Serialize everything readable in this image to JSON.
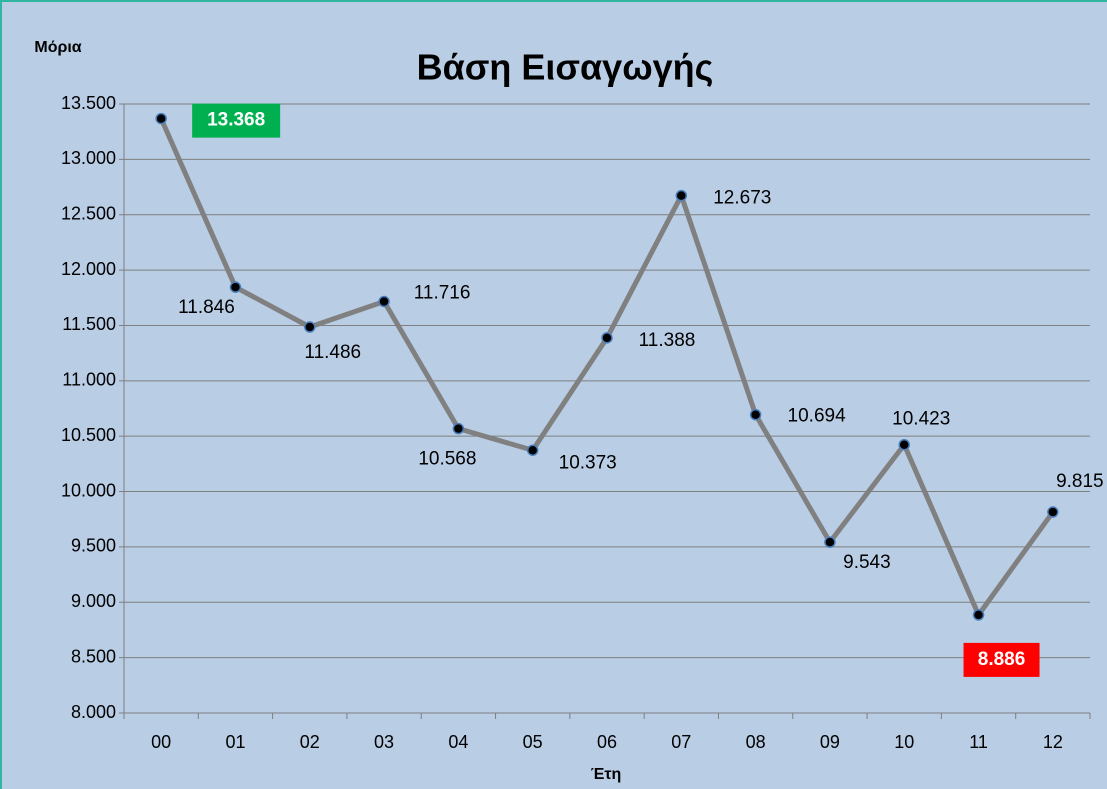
{
  "chart_data": {
    "type": "line",
    "title": "Βάση Εισαγωγής",
    "y_label": "Μόρια",
    "x_label": "Έτη",
    "categories": [
      "00",
      "01",
      "02",
      "03",
      "04",
      "05",
      "06",
      "07",
      "08",
      "09",
      "10",
      "11",
      "12"
    ],
    "values": [
      13368,
      11846,
      11486,
      11716,
      10568,
      10373,
      11388,
      12673,
      10694,
      9543,
      10423,
      8886,
      9815
    ],
    "value_labels": [
      "13.368",
      "11.846",
      "11.486",
      "11.716",
      "10.568",
      "10.373",
      "11.388",
      "12.673",
      "10.694",
      "9.543",
      "10.423",
      "8.886",
      "9.815"
    ],
    "value_label_colors": [
      "#00b050",
      null,
      null,
      null,
      null,
      null,
      null,
      null,
      null,
      null,
      null,
      "#ff0000",
      null
    ],
    "color": "#808080",
    "marker_color": "#000000",
    "ylim": [
      8000,
      13500
    ],
    "yticks": [
      {
        "value": 8000,
        "label": "8.000"
      },
      {
        "value": 8500,
        "label": "8.500"
      },
      {
        "value": 9000,
        "label": "9.000"
      },
      {
        "value": 9500,
        "label": "9.500"
      },
      {
        "value": 10000,
        "label": "10.000"
      },
      {
        "value": 10500,
        "label": "10.500"
      },
      {
        "value": 11000,
        "label": "11.000"
      },
      {
        "value": 11500,
        "label": "11.500"
      },
      {
        "value": 12000,
        "label": "12.000"
      },
      {
        "value": 12500,
        "label": "12.500"
      },
      {
        "value": 13000,
        "label": "13.000"
      },
      {
        "value": 13500,
        "label": "13.500"
      }
    ],
    "grid": true
  }
}
